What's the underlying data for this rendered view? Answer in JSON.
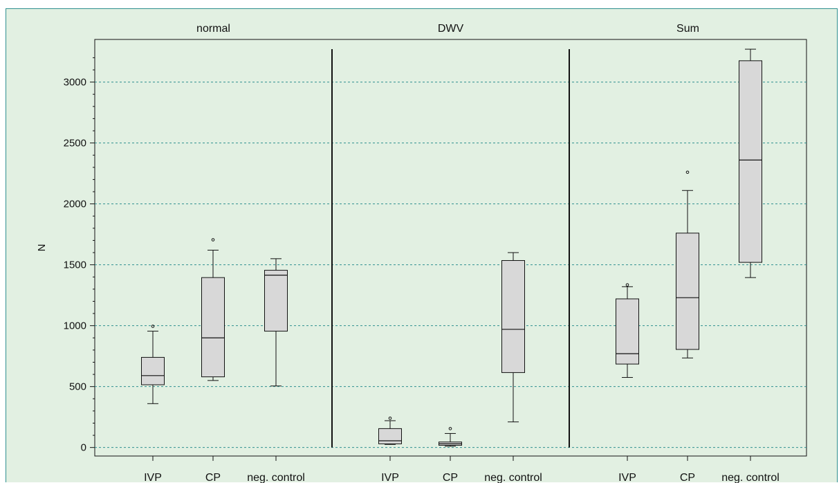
{
  "chart_data": {
    "type": "box",
    "ylabel": "N",
    "ylim": [
      -70,
      3350
    ],
    "yticks": [
      0,
      500,
      1000,
      1500,
      2000,
      2500,
      3000
    ],
    "grid": "horizontal dashed",
    "colors": {
      "background": "#e2f0e2",
      "box_fill": "#d8d8d8",
      "stroke": "#111111",
      "grid": "#2e8f8f",
      "frame": "#2e8f8f"
    },
    "panels": [
      {
        "title": "normal",
        "groups": [
          {
            "label": "IVP",
            "whisker_low": 360,
            "q1": 515,
            "median": 590,
            "q3": 740,
            "whisker_high": 955,
            "outliers": [
              995
            ]
          },
          {
            "label": "CP",
            "whisker_low": 550,
            "q1": 580,
            "median": 900,
            "q3": 1395,
            "whisker_high": 1620,
            "outliers": [
              1705
            ]
          },
          {
            "label": "neg. control",
            "whisker_low": 505,
            "q1": 955,
            "median": 1415,
            "q3": 1455,
            "whisker_high": 1550,
            "outliers": []
          }
        ]
      },
      {
        "title": "DWV",
        "groups": [
          {
            "label": "IVP",
            "whisker_low": 25,
            "q1": 30,
            "median": 55,
            "q3": 155,
            "whisker_high": 220,
            "outliers": [
              240
            ]
          },
          {
            "label": "CP",
            "whisker_low": 10,
            "q1": 18,
            "median": 30,
            "q3": 45,
            "whisker_high": 115,
            "outliers": [
              155
            ]
          },
          {
            "label": "neg. control",
            "whisker_low": 210,
            "q1": 615,
            "median": 970,
            "q3": 1535,
            "whisker_high": 1600,
            "outliers": []
          }
        ]
      },
      {
        "title": "Sum",
        "groups": [
          {
            "label": "IVP",
            "whisker_low": 575,
            "q1": 685,
            "median": 770,
            "q3": 1220,
            "whisker_high": 1320,
            "outliers": [
              1335
            ]
          },
          {
            "label": "CP",
            "whisker_low": 735,
            "q1": 805,
            "median": 1230,
            "q3": 1760,
            "whisker_high": 2110,
            "outliers": [
              2260
            ]
          },
          {
            "label": "neg. control",
            "whisker_low": 1395,
            "q1": 1520,
            "median": 2360,
            "q3": 3175,
            "whisker_high": 3270,
            "outliers": []
          }
        ]
      }
    ]
  }
}
